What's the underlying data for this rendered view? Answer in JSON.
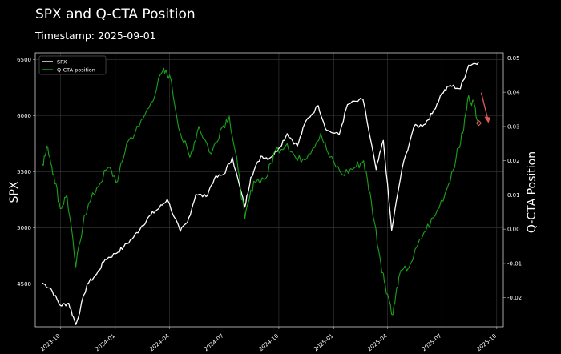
{
  "title": "SPX and Q-CTA Position",
  "subtitle": "Timestamp: 2025-09-01",
  "chart_data": {
    "type": "line",
    "title": "SPX and Q-CTA Position",
    "subtitle": "Timestamp: 2025-09-01",
    "xlabel": "",
    "ylabel": "SPX",
    "y2label": "Q-CTA Position",
    "xlim": [
      "2023-08-20",
      "2025-10-12"
    ],
    "ylim": [
      4120,
      6560
    ],
    "y2lim": [
      -0.0285,
      0.0515
    ],
    "x_ticks": [
      "2023-10",
      "2024-01",
      "2024-04",
      "2024-07",
      "2024-10",
      "2025-01",
      "2025-04",
      "2025-07",
      "2025-10"
    ],
    "y_ticks": [
      4500,
      5000,
      5500,
      6000,
      6500
    ],
    "y2_ticks": [
      -0.02,
      -0.01,
      0.0,
      0.01,
      0.02,
      0.03,
      0.04,
      0.05
    ],
    "grid": true,
    "legend_position": "top-left",
    "series": [
      {
        "name": "SPX",
        "axis": "left",
        "color": "#ffffff",
        "points": [
          [
            "2023-09-01",
            4510
          ],
          [
            "2023-09-15",
            4460
          ],
          [
            "2023-10-01",
            4310
          ],
          [
            "2023-10-15",
            4330
          ],
          [
            "2023-10-27",
            4140
          ],
          [
            "2023-11-15",
            4500
          ],
          [
            "2023-12-01",
            4590
          ],
          [
            "2023-12-15",
            4720
          ],
          [
            "2024-01-01",
            4770
          ],
          [
            "2024-01-15",
            4830
          ],
          [
            "2024-02-01",
            4920
          ],
          [
            "2024-02-15",
            5020
          ],
          [
            "2024-03-01",
            5120
          ],
          [
            "2024-03-15",
            5180
          ],
          [
            "2024-03-28",
            5255
          ],
          [
            "2024-04-19",
            4970
          ],
          [
            "2024-05-01",
            5050
          ],
          [
            "2024-05-15",
            5300
          ],
          [
            "2024-06-01",
            5280
          ],
          [
            "2024-06-15",
            5440
          ],
          [
            "2024-07-01",
            5480
          ],
          [
            "2024-07-15",
            5630
          ],
          [
            "2024-08-05",
            5185
          ],
          [
            "2024-08-15",
            5450
          ],
          [
            "2024-09-01",
            5640
          ],
          [
            "2024-09-15",
            5620
          ],
          [
            "2024-10-01",
            5710
          ],
          [
            "2024-10-15",
            5840
          ],
          [
            "2024-11-01",
            5730
          ],
          [
            "2024-11-15",
            5950
          ],
          [
            "2024-12-06",
            6090
          ],
          [
            "2024-12-20",
            5870
          ],
          [
            "2025-01-10",
            5830
          ],
          [
            "2025-01-24",
            6100
          ],
          [
            "2025-02-19",
            6145
          ],
          [
            "2025-03-13",
            5520
          ],
          [
            "2025-03-25",
            5780
          ],
          [
            "2025-04-08",
            4980
          ],
          [
            "2025-04-25",
            5520
          ],
          [
            "2025-05-15",
            5900
          ],
          [
            "2025-06-01",
            5920
          ],
          [
            "2025-06-15",
            6020
          ],
          [
            "2025-07-01",
            6200
          ],
          [
            "2025-07-15",
            6270
          ],
          [
            "2025-08-01",
            6240
          ],
          [
            "2025-08-15",
            6450
          ],
          [
            "2025-09-01",
            6480
          ]
        ]
      },
      {
        "name": "Q-CTA position",
        "axis": "right",
        "color": "#1aa31a",
        "points": [
          [
            "2023-09-01",
            0.019
          ],
          [
            "2023-09-10",
            0.024
          ],
          [
            "2023-09-20",
            0.016
          ],
          [
            "2023-10-01",
            0.006
          ],
          [
            "2023-10-12",
            0.01
          ],
          [
            "2023-10-27",
            -0.011
          ],
          [
            "2023-11-10",
            0.004
          ],
          [
            "2023-12-01",
            0.012
          ],
          [
            "2023-12-20",
            0.018
          ],
          [
            "2024-01-05",
            0.014
          ],
          [
            "2024-01-20",
            0.025
          ],
          [
            "2024-02-10",
            0.03
          ],
          [
            "2024-03-01",
            0.037
          ],
          [
            "2024-03-20",
            0.046
          ],
          [
            "2024-04-01",
            0.045
          ],
          [
            "2024-04-19",
            0.028
          ],
          [
            "2024-05-05",
            0.021
          ],
          [
            "2024-05-20",
            0.03
          ],
          [
            "2024-06-10",
            0.022
          ],
          [
            "2024-06-25",
            0.029
          ],
          [
            "2024-07-10",
            0.033
          ],
          [
            "2024-07-25",
            0.017
          ],
          [
            "2024-08-05",
            0.003
          ],
          [
            "2024-08-20",
            0.014
          ],
          [
            "2024-09-10",
            0.015
          ],
          [
            "2024-09-25",
            0.023
          ],
          [
            "2024-10-15",
            0.025
          ],
          [
            "2024-11-01",
            0.02
          ],
          [
            "2024-11-20",
            0.022
          ],
          [
            "2024-12-10",
            0.028
          ],
          [
            "2024-12-25",
            0.021
          ],
          [
            "2025-01-15",
            0.016
          ],
          [
            "2025-02-05",
            0.018
          ],
          [
            "2025-02-20",
            0.02
          ],
          [
            "2025-03-05",
            0.008
          ],
          [
            "2025-03-20",
            -0.009
          ],
          [
            "2025-03-28",
            -0.016
          ],
          [
            "2025-04-10",
            -0.025
          ],
          [
            "2025-04-20",
            -0.014
          ],
          [
            "2025-05-10",
            -0.01
          ],
          [
            "2025-06-01",
            -0.001
          ],
          [
            "2025-06-20",
            0.004
          ],
          [
            "2025-07-10",
            0.012
          ],
          [
            "2025-07-25",
            0.021
          ],
          [
            "2025-08-05",
            0.028
          ],
          [
            "2025-08-15",
            0.039
          ],
          [
            "2025-08-25",
            0.036
          ],
          [
            "2025-09-01",
            0.031
          ]
        ]
      }
    ],
    "annotations": [
      {
        "type": "arrow",
        "color": "#e05a5a",
        "target": [
          "2025-09-01",
          0.031
        ],
        "axis": "right"
      },
      {
        "type": "marker",
        "color": "#e05a5a",
        "at": [
          "2025-09-01",
          0.031
        ],
        "axis": "right"
      }
    ]
  }
}
